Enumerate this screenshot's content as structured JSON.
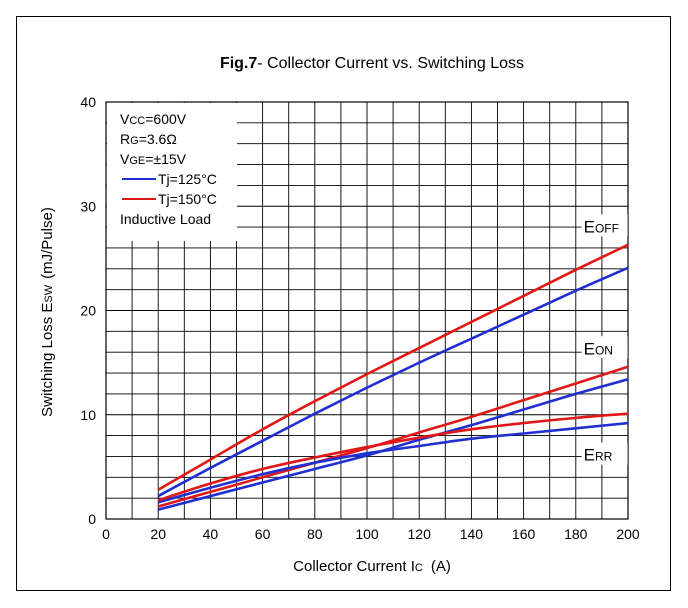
{
  "chart_data": {
    "type": "line",
    "title_prefix": "Fig.7",
    "title_rest": "- Collector Current vs. Switching Loss",
    "xlabel": {
      "main": "Collector Current I",
      "sub": "C",
      "unit": "(A)"
    },
    "ylabel": {
      "main": "Switching Loss E",
      "sub": "SW",
      "unit": "(mJ/Pulse)"
    },
    "xlim": [
      0,
      200
    ],
    "ylim": [
      0,
      40
    ],
    "xticks": [
      0,
      20,
      40,
      60,
      80,
      100,
      120,
      140,
      160,
      180,
      200
    ],
    "yticks": [
      0,
      10,
      20,
      30,
      40
    ],
    "grid": true,
    "conditions": [
      {
        "main": "V",
        "sub": "CC",
        "rest": "=600V"
      },
      {
        "main": "R",
        "sub": "G",
        "rest": "=3.6Ω"
      },
      {
        "main": "V",
        "sub": "GE",
        "rest": "=±15V"
      }
    ],
    "legend": [
      {
        "label": "Tj=125°C",
        "color": "#1f2fd0"
      },
      {
        "label": "Tj=150°C",
        "color": "#e01818"
      }
    ],
    "load_note": "Inductive Load",
    "curve_labels": [
      {
        "main": "E",
        "sub": "OFF",
        "at": [
          183,
          27.5
        ]
      },
      {
        "main": "E",
        "sub": "ON",
        "at": [
          183,
          15.8
        ]
      },
      {
        "main": "E",
        "sub": "RR",
        "at": [
          183,
          5.6
        ]
      }
    ],
    "series": [
      {
        "group": "EOFF",
        "tj": "125°C",
        "color": "#1f2fd0",
        "x": [
          20,
          40,
          60,
          80,
          100,
          120,
          140,
          160,
          180,
          200
        ],
        "y": [
          2.2,
          4.9,
          7.5,
          10.1,
          12.6,
          15.0,
          17.3,
          19.6,
          21.9,
          24.1
        ]
      },
      {
        "group": "EOFF",
        "tj": "150°C",
        "color": "#e01818",
        "x": [
          20,
          40,
          60,
          80,
          100,
          120,
          140,
          160,
          180,
          200
        ],
        "y": [
          2.8,
          5.7,
          8.6,
          11.3,
          13.9,
          16.4,
          18.9,
          21.4,
          23.9,
          26.3
        ]
      },
      {
        "group": "EON",
        "tj": "125°C",
        "color": "#1f2fd0",
        "x": [
          20,
          40,
          60,
          80,
          100,
          120,
          140,
          160,
          180,
          200
        ],
        "y": [
          0.9,
          2.2,
          3.5,
          4.8,
          6.1,
          7.6,
          9.0,
          10.5,
          12.0,
          13.4
        ]
      },
      {
        "group": "EON",
        "tj": "150°C",
        "color": "#e01818",
        "x": [
          20,
          40,
          60,
          80,
          100,
          120,
          140,
          160,
          180,
          200
        ],
        "y": [
          1.2,
          2.6,
          4.0,
          5.4,
          6.8,
          8.3,
          9.8,
          11.4,
          13.0,
          14.6
        ]
      },
      {
        "group": "ERR",
        "tj": "125°C",
        "color": "#1f2fd0",
        "x": [
          20,
          40,
          60,
          80,
          100,
          120,
          140,
          160,
          180,
          200
        ],
        "y": [
          1.6,
          3.0,
          4.3,
          5.4,
          6.3,
          7.0,
          7.7,
          8.2,
          8.7,
          9.2
        ]
      },
      {
        "group": "ERR",
        "tj": "150°C",
        "color": "#e01818",
        "x": [
          20,
          40,
          60,
          80,
          100,
          120,
          140,
          160,
          180,
          200
        ],
        "y": [
          1.8,
          3.4,
          4.8,
          5.9,
          6.9,
          7.8,
          8.6,
          9.2,
          9.7,
          10.1
        ]
      }
    ]
  }
}
